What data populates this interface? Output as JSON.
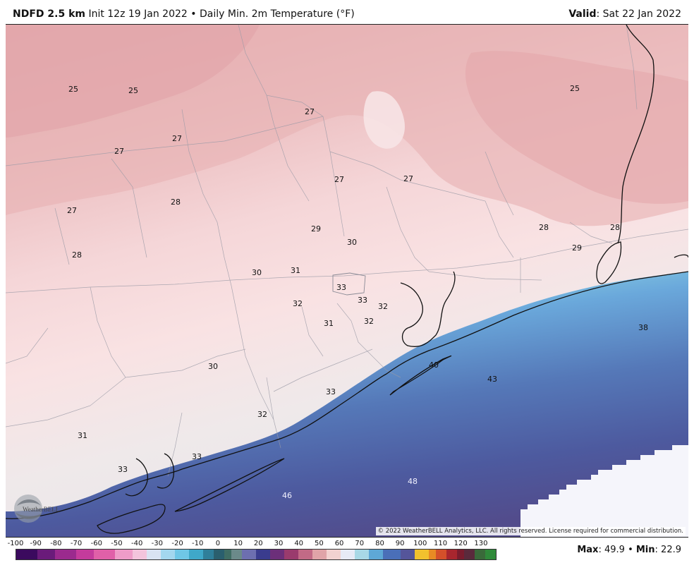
{
  "header": {
    "product": "NDFD 2.5 km",
    "init": "Init 12z 19 Jan 2022",
    "separator": "•",
    "variable": "Daily Min. 2m Temperature (°F)",
    "valid_label": "Valid",
    "valid_value": ": Sat 22 Jan 2022"
  },
  "map": {
    "labels": [
      "25",
      "25",
      "25",
      "27",
      "27",
      "27",
      "27",
      "27",
      "28",
      "27",
      "28",
      "29",
      "30",
      "28",
      "28",
      "29",
      "30",
      "31",
      "33",
      "33",
      "32",
      "32",
      "31",
      "32",
      "38",
      "40",
      "30",
      "43",
      "33",
      "32",
      "31",
      "33",
      "33",
      "48",
      "46"
    ]
  },
  "copyright": "© 2022 WeatherBELL Analytics, LLC. All rights reserved. License required for commercial distribution.",
  "logo_text": "WeatherBELL",
  "scale": {
    "ticks": [
      "-100",
      "-90",
      "-80",
      "-70",
      "-60",
      "-50",
      "-40",
      "-30",
      "-20",
      "-10",
      "0",
      "10",
      "20",
      "30",
      "40",
      "50",
      "60",
      "70",
      "80",
      "90",
      "100",
      "110",
      "120",
      "130"
    ]
  },
  "stats": {
    "max_label": "Max",
    "max_value": ": 49.9",
    "sep": "•",
    "min_label": "Min",
    "min_value": ": 22.9"
  },
  "colors": {
    "cold_pink": "#e9b3b6",
    "mid_pink": "#f7dcdd",
    "light_gray": "#ece8ea",
    "cyan": "#b6ecef",
    "sea_blue": "#5a83c2",
    "deep_purple": "#4f4e92",
    "warm_white": "#f5f5fb"
  }
}
